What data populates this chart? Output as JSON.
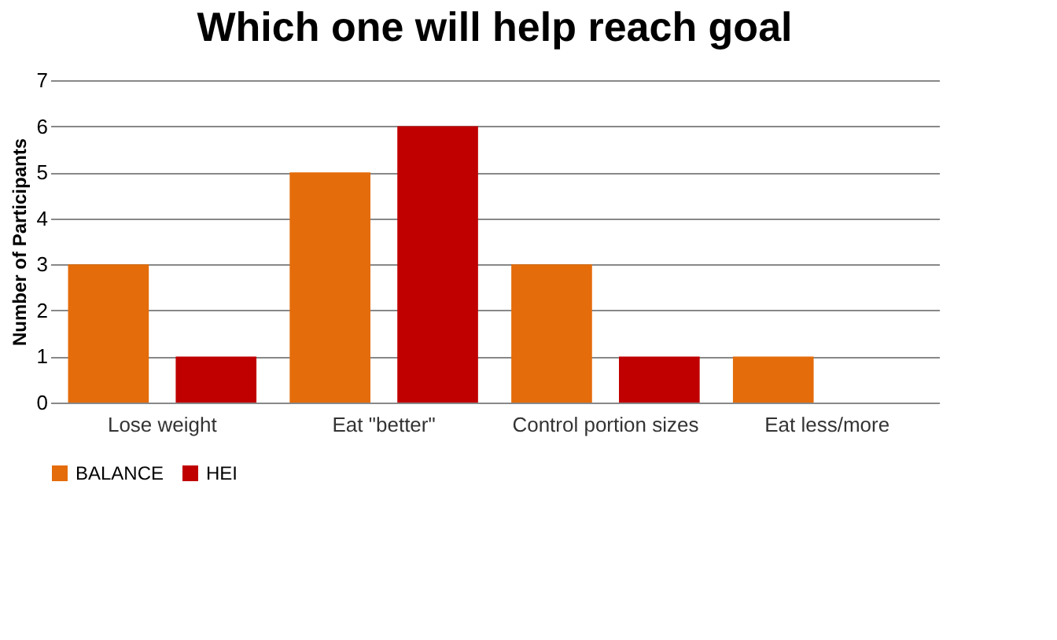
{
  "chart_data": {
    "type": "bar",
    "title": "Which one will help reach goal",
    "ylabel": "Number of Participants",
    "categories": [
      "Lose weight",
      "Eat \"better\"",
      "Control portion sizes",
      "Eat less/more"
    ],
    "series": [
      {
        "name": "BALANCE",
        "color": "#e46c0a",
        "values": [
          3,
          5,
          3,
          1
        ]
      },
      {
        "name": "HEI",
        "color": "#c00000",
        "values": [
          1,
          6,
          1,
          0
        ]
      }
    ],
    "ylim": [
      0,
      7
    ],
    "yticks": [
      0,
      1,
      2,
      3,
      4,
      5,
      6,
      7
    ],
    "grid": "y",
    "legend": "bottom"
  }
}
